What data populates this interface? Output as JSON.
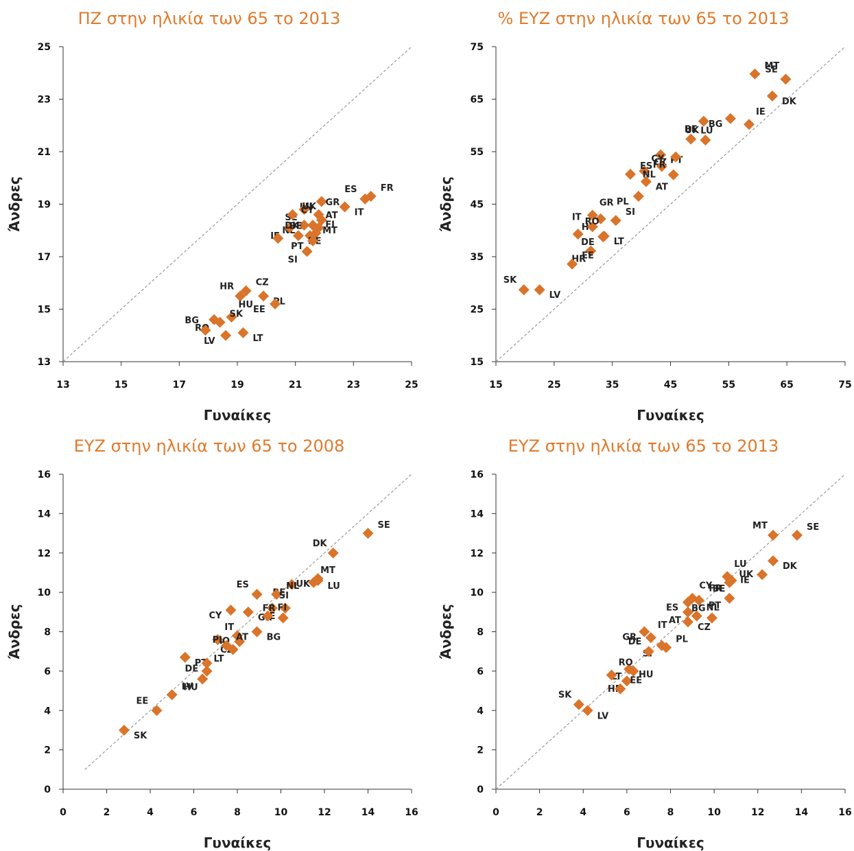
{
  "colors": {
    "marker": "#d9742a",
    "title": "#e07a2b",
    "axis": "#333333",
    "diagonal": "#999999"
  },
  "chart_data": [
    {
      "type": "scatter",
      "title": "ΠΖ στην ηλικία των 65 το 2013",
      "xlabel": "Γυναίκες",
      "ylabel": "Άνδρες",
      "xlim": [
        13,
        25
      ],
      "ylim": [
        13,
        25
      ],
      "xticks": [
        13,
        15,
        17,
        19,
        21,
        23,
        25
      ],
      "yticks": [
        13,
        15,
        17,
        19,
        21,
        23,
        25
      ],
      "reference_line": "y=x",
      "points": [
        {
          "label": "FR",
          "x": 23.6,
          "y": 19.3
        },
        {
          "label": "ES",
          "x": 23.4,
          "y": 19.2
        },
        {
          "label": "IT",
          "x": 22.7,
          "y": 18.9
        },
        {
          "label": "LU",
          "x": 21.9,
          "y": 19.1
        },
        {
          "label": "GR",
          "x": 21.8,
          "y": 18.6
        },
        {
          "label": "SE",
          "x": 21.3,
          "y": 18.8
        },
        {
          "label": "UK",
          "x": 20.9,
          "y": 18.6
        },
        {
          "label": "CY",
          "x": 21.9,
          "y": 18.4
        },
        {
          "label": "MT",
          "x": 21.6,
          "y": 18.2
        },
        {
          "label": "NL",
          "x": 21.3,
          "y": 18.2
        },
        {
          "label": "AT",
          "x": 21.8,
          "y": 18.1
        },
        {
          "label": "IE",
          "x": 20.8,
          "y": 18.1
        },
        {
          "label": "FI",
          "x": 21.7,
          "y": 17.9
        },
        {
          "label": "BE",
          "x": 21.5,
          "y": 17.8
        },
        {
          "label": "DE",
          "x": 21.1,
          "y": 17.8
        },
        {
          "label": "PT",
          "x": 21.6,
          "y": 17.6
        },
        {
          "label": "DK",
          "x": 20.4,
          "y": 17.7
        },
        {
          "label": "SI",
          "x": 21.4,
          "y": 17.2
        },
        {
          "label": "CZ",
          "x": 19.3,
          "y": 15.7
        },
        {
          "label": "HR",
          "x": 19.1,
          "y": 15.5
        },
        {
          "label": "PL",
          "x": 19.9,
          "y": 15.5
        },
        {
          "label": "EE",
          "x": 20.3,
          "y": 15.2
        },
        {
          "label": "HU",
          "x": 18.8,
          "y": 14.7
        },
        {
          "label": "RO",
          "x": 18.2,
          "y": 14.6
        },
        {
          "label": "SK",
          "x": 18.4,
          "y": 14.5
        },
        {
          "label": "BG",
          "x": 17.9,
          "y": 14.2
        },
        {
          "label": "LT",
          "x": 19.2,
          "y": 14.1
        },
        {
          "label": "LV",
          "x": 18.6,
          "y": 14.0
        }
      ]
    },
    {
      "type": "scatter",
      "title": "% ΕΥΖ στην ηλικία των 65 το 2013",
      "xlabel": "Γυναίκες",
      "ylabel": "Άνδρες",
      "xlim": [
        15,
        75
      ],
      "ylim": [
        15,
        75
      ],
      "xticks": [
        15,
        25,
        35,
        45,
        55,
        65,
        75
      ],
      "yticks": [
        15,
        25,
        35,
        45,
        55,
        65,
        75
      ],
      "reference_line": "y=x",
      "points": [
        {
          "label": "MT",
          "x": 59.5,
          "y": 69.8
        },
        {
          "label": "SE",
          "x": 64.8,
          "y": 68.8
        },
        {
          "label": "DK",
          "x": 62.5,
          "y": 65.6
        },
        {
          "label": "BG",
          "x": 55.3,
          "y": 61.3
        },
        {
          "label": "IE",
          "x": 58.5,
          "y": 60.2
        },
        {
          "label": "BE",
          "x": 50.7,
          "y": 60.8
        },
        {
          "label": "LU",
          "x": 48.5,
          "y": 57.4
        },
        {
          "label": "UK",
          "x": 51.0,
          "y": 57.2
        },
        {
          "label": "PT",
          "x": 43.3,
          "y": 54.4
        },
        {
          "label": "CZ",
          "x": 45.9,
          "y": 54.0
        },
        {
          "label": "CY",
          "x": 40.5,
          "y": 51.3
        },
        {
          "label": "NL",
          "x": 43.5,
          "y": 52.2
        },
        {
          "label": "ES",
          "x": 38.1,
          "y": 50.7
        },
        {
          "label": "FR",
          "x": 45.5,
          "y": 50.6
        },
        {
          "label": "AT",
          "x": 40.8,
          "y": 49.3
        },
        {
          "label": "PL",
          "x": 39.5,
          "y": 46.5
        },
        {
          "label": "GR",
          "x": 31.6,
          "y": 42.9
        },
        {
          "label": "HU",
          "x": 33.0,
          "y": 42.2
        },
        {
          "label": "SI",
          "x": 35.6,
          "y": 41.9
        },
        {
          "label": "IT",
          "x": 31.6,
          "y": 40.7
        },
        {
          "label": "LT",
          "x": 33.6,
          "y": 38.9
        },
        {
          "label": "DE",
          "x": 33.4,
          "y": 38.8
        },
        {
          "label": "RO",
          "x": 29.1,
          "y": 39.3
        },
        {
          "label": "HR",
          "x": 31.3,
          "y": 36.1
        },
        {
          "label": "EE",
          "x": 28.1,
          "y": 33.6
        },
        {
          "label": "SK",
          "x": 19.8,
          "y": 28.7
        },
        {
          "label": "LV",
          "x": 22.5,
          "y": 28.7
        }
      ]
    },
    {
      "type": "scatter",
      "title": "ΕΥΖ στην ηλικία των 65 το 2008",
      "xlabel": "Γυναίκες",
      "ylabel": "Άνδρες",
      "xlim": [
        0,
        16
      ],
      "ylim": [
        0,
        16
      ],
      "xticks": [
        0,
        2,
        4,
        6,
        8,
        10,
        12,
        14,
        16
      ],
      "yticks": [
        0,
        2,
        4,
        6,
        8,
        10,
        12,
        14,
        16
      ],
      "reference_line": "y=x",
      "reference_line_range": [
        1,
        16
      ],
      "points": [
        {
          "label": "SE",
          "x": 14.0,
          "y": 13.0
        },
        {
          "label": "DK",
          "x": 12.4,
          "y": 12.0
        },
        {
          "label": "LU",
          "x": 11.7,
          "y": 10.6
        },
        {
          "label": "UK",
          "x": 11.7,
          "y": 10.7
        },
        {
          "label": "MT",
          "x": 11.5,
          "y": 10.5
        },
        {
          "label": "BE",
          "x": 10.5,
          "y": 10.4
        },
        {
          "label": "NL",
          "x": 9.8,
          "y": 9.9
        },
        {
          "label": "ES",
          "x": 8.9,
          "y": 9.9
        },
        {
          "label": "GR",
          "x": 8.5,
          "y": 9.0
        },
        {
          "label": "CY",
          "x": 7.7,
          "y": 9.1
        },
        {
          "label": "SI",
          "x": 9.6,
          "y": 9.2
        },
        {
          "label": "IE",
          "x": 10.2,
          "y": 9.2
        },
        {
          "label": "FI",
          "x": 9.4,
          "y": 8.8
        },
        {
          "label": "FR",
          "x": 10.1,
          "y": 8.7
        },
        {
          "label": "BG",
          "x": 8.9,
          "y": 8.0
        },
        {
          "label": "RO",
          "x": 8.0,
          "y": 7.8
        },
        {
          "label": "IT",
          "x": 7.1,
          "y": 7.6
        },
        {
          "label": "CZ",
          "x": 8.1,
          "y": 7.5
        },
        {
          "label": "AT",
          "x": 7.5,
          "y": 7.3
        },
        {
          "label": "PL",
          "x": 7.8,
          "y": 7.1
        },
        {
          "label": "PT",
          "x": 5.6,
          "y": 6.7
        },
        {
          "label": "DE",
          "x": 6.6,
          "y": 6.4
        },
        {
          "label": "LT",
          "x": 6.6,
          "y": 6.0
        },
        {
          "label": "HU",
          "x": 6.4,
          "y": 5.6
        },
        {
          "label": "LV",
          "x": 5.0,
          "y": 4.8
        },
        {
          "label": "EE",
          "x": 4.3,
          "y": 4.0
        },
        {
          "label": "SK",
          "x": 2.8,
          "y": 3.0
        }
      ]
    },
    {
      "type": "scatter",
      "title": "ΕΥΖ στην ηλικία των 65 το 2013",
      "xlabel": "Γυναίκες",
      "ylabel": "Άνδρες",
      "xlim": [
        0,
        16
      ],
      "ylim": [
        0,
        16
      ],
      "xticks": [
        0,
        2,
        4,
        6,
        8,
        10,
        12,
        14,
        16
      ],
      "yticks": [
        0,
        2,
        4,
        6,
        8,
        10,
        12,
        14,
        16
      ],
      "reference_line": "y=x",
      "points": [
        {
          "label": "SE",
          "x": 13.8,
          "y": 12.9
        },
        {
          "label": "MT",
          "x": 12.7,
          "y": 12.9
        },
        {
          "label": "DK",
          "x": 12.7,
          "y": 11.6
        },
        {
          "label": "IE",
          "x": 12.2,
          "y": 10.9
        },
        {
          "label": "LU",
          "x": 10.6,
          "y": 10.8
        },
        {
          "label": "BE",
          "x": 10.8,
          "y": 10.6
        },
        {
          "label": "UK",
          "x": 10.7,
          "y": 10.5
        },
        {
          "label": "FR",
          "x": 10.7,
          "y": 9.7
        },
        {
          "label": "PT",
          "x": 9.3,
          "y": 9.6
        },
        {
          "label": "ES",
          "x": 8.8,
          "y": 9.5
        },
        {
          "label": "CY",
          "x": 9.0,
          "y": 9.7
        },
        {
          "label": "AT",
          "x": 8.8,
          "y": 9.0
        },
        {
          "label": "NL",
          "x": 9.2,
          "y": 8.8
        },
        {
          "label": "BG",
          "x": 9.9,
          "y": 8.7
        },
        {
          "label": "CZ",
          "x": 8.8,
          "y": 8.5
        },
        {
          "label": "GR",
          "x": 6.8,
          "y": 8.0
        },
        {
          "label": "IT",
          "x": 7.1,
          "y": 7.7
        },
        {
          "label": "SI",
          "x": 7.6,
          "y": 7.3
        },
        {
          "label": "PL",
          "x": 7.8,
          "y": 7.2
        },
        {
          "label": "DE",
          "x": 7.0,
          "y": 7.0
        },
        {
          "label": "HU",
          "x": 6.1,
          "y": 6.1
        },
        {
          "label": "LT",
          "x": 6.3,
          "y": 6.0
        },
        {
          "label": "RO",
          "x": 5.3,
          "y": 5.8
        },
        {
          "label": "HR",
          "x": 6.0,
          "y": 5.5
        },
        {
          "label": "EE",
          "x": 5.7,
          "y": 5.1
        },
        {
          "label": "SK",
          "x": 3.8,
          "y": 4.3
        },
        {
          "label": "LV",
          "x": 4.2,
          "y": 4.0
        }
      ]
    }
  ]
}
